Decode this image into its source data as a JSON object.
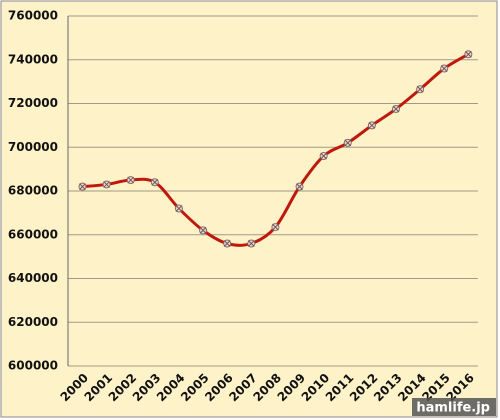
{
  "chart_data": {
    "type": "line",
    "categories": [
      "2000",
      "2001",
      "2002",
      "2003",
      "2004",
      "2005",
      "2006",
      "2007",
      "2008",
      "2009",
      "2010",
      "2011",
      "2012",
      "2013",
      "2014",
      "2015",
      "2016"
    ],
    "series": [
      {
        "name": "",
        "color": "#c0180c",
        "values": [
          682000,
          683000,
          685000,
          684000,
          672000,
          662000,
          656000,
          656000,
          663500,
          682000,
          696000,
          702000,
          710000,
          717500,
          726500,
          736000,
          742500
        ]
      }
    ],
    "ylim": [
      600000,
      760000
    ],
    "yticks": [
      600000,
      620000,
      640000,
      660000,
      680000,
      700000,
      720000,
      740000,
      760000
    ],
    "grid": true,
    "watermark": "hamlife.jp"
  }
}
